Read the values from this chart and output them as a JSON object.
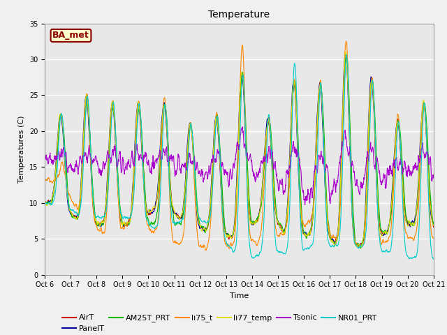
{
  "title": "Temperature",
  "xlabel": "Time",
  "ylabel": "Temperatures (C)",
  "ylim": [
    0,
    35
  ],
  "annotation_text": "BA_met",
  "annotation_bbox": {
    "boxstyle": "round,pad=0.2",
    "facecolor": "#ffffcc",
    "edgecolor": "#8B0000",
    "linewidth": 1.5
  },
  "annotation_fontsize": 9,
  "annotation_fontcolor": "#8B0000",
  "annotation_fontweight": "bold",
  "series_colors": {
    "AirT": "#cc0000",
    "PanelT": "#000099",
    "AM25T_PRT": "#00bb00",
    "li75_t": "#ff8800",
    "li77_temp": "#dddd00",
    "Tsonic": "#aa00cc",
    "NR01_PRT": "#00cccc"
  },
  "series_linewidth": 0.8,
  "n_days": 15,
  "n_points_per_day": 96,
  "background_color": "#e8e8e8",
  "plot_bg_color": "#e8e8e8",
  "grid_color": "white",
  "grid_linewidth": 1.0,
  "tick_label_size": 7,
  "axis_label_size": 8,
  "title_size": 10,
  "legend_fontsize": 8,
  "xtick_labels": [
    "Oct 6",
    "Oct 7",
    "Oct 8",
    "Oct 9",
    "Oct 10",
    "Oct 11",
    "Oct 12",
    "Oct 13",
    "Oct 14",
    "Oct 15",
    "Oct 16",
    "Oct 17",
    "Oct 18",
    "Oct 19",
    "Oct 20",
    "Oct 21"
  ],
  "ytick_vals": [
    0,
    5,
    10,
    15,
    20,
    25,
    30,
    35
  ]
}
